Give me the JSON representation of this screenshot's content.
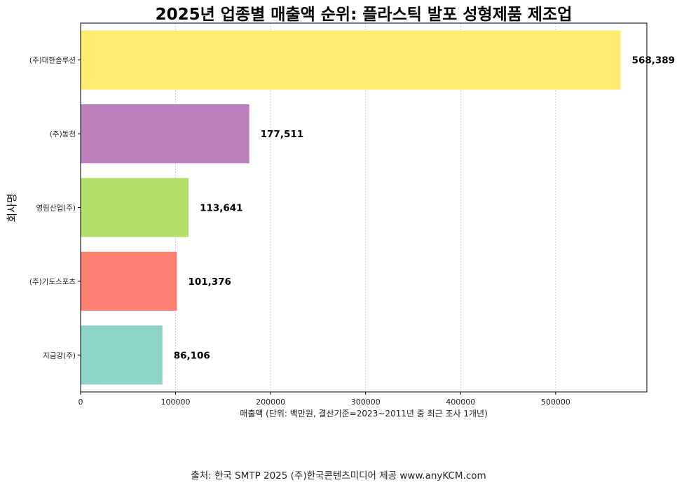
{
  "chart_data": {
    "type": "bar",
    "orientation": "horizontal",
    "title": "2025년 업종별 매출액 순위: 플라스틱 발포 성형제품 제조업",
    "xlabel": "매출액 (단위: 백만원, 결산기준=2023~2011년 중 최근 조사 1개년)",
    "ylabel": "회사명",
    "categories": [
      "(주)대한솔루션",
      "(주)동천",
      "영림산업(주)",
      "(주)기도스포츠",
      "지금강(주)"
    ],
    "values": [
      568389,
      177511,
      113641,
      101376,
      86106
    ],
    "value_labels": [
      "568,389",
      "177,511",
      "113,641",
      "101,376",
      "86,106"
    ],
    "colors": [
      "#FFEB6E",
      "#BB80BC",
      "#B3DF6A",
      "#FB8072",
      "#8DD3C7"
    ],
    "xlim": [
      0,
      596000
    ],
    "xticks": [
      0,
      100000,
      200000,
      300000,
      400000,
      500000
    ],
    "xtick_labels": [
      "0",
      "100000",
      "200000",
      "300000",
      "400000",
      "500000"
    ],
    "grid": "vertical dashed"
  },
  "source": "출처: 한국 SMTP 2025  (주)한국콘텐츠미디어 제공  www.anyKCM.com"
}
